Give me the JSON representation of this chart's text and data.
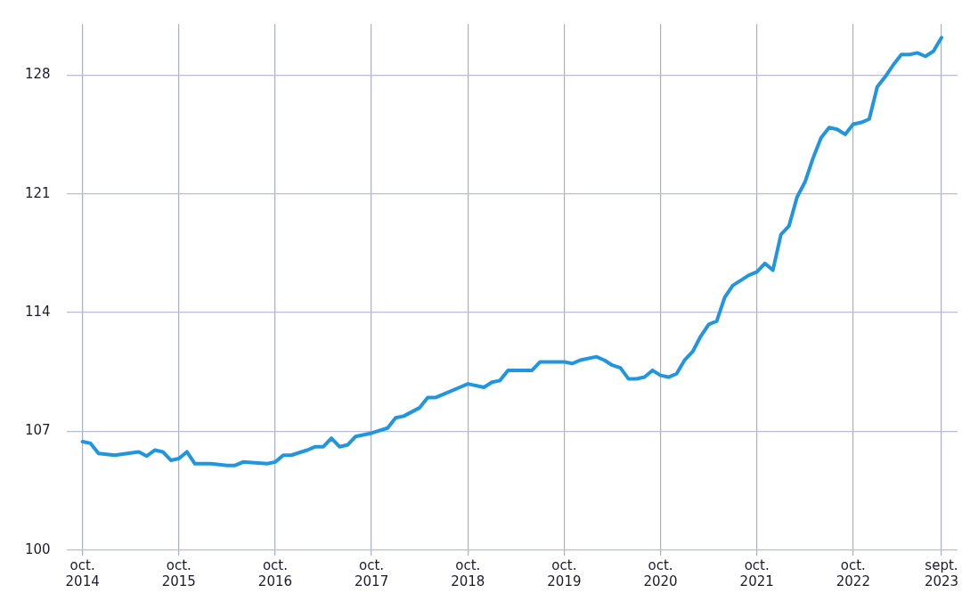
{
  "chart_data": {
    "type": "line",
    "x": [
      "2014-10",
      "2014-11",
      "2014-12",
      "2015-02",
      "2015-05",
      "2015-06",
      "2015-07",
      "2015-08",
      "2015-09",
      "2015-10",
      "2015-11",
      "2015-12",
      "2016-02",
      "2016-04",
      "2016-05",
      "2016-06",
      "2016-09",
      "2016-10",
      "2016-11",
      "2016-12",
      "2017-02",
      "2017-03",
      "2017-04",
      "2017-05",
      "2017-06",
      "2017-07",
      "2017-08",
      "2017-10",
      "2017-12",
      "2018-01",
      "2018-02",
      "2018-04",
      "2018-05",
      "2018-06",
      "2018-07",
      "2018-09",
      "2018-10",
      "2018-12",
      "2019-01",
      "2019-02",
      "2019-03",
      "2019-04",
      "2019-06",
      "2019-07",
      "2019-08",
      "2019-10",
      "2019-11",
      "2019-12",
      "2020-02",
      "2020-03",
      "2020-04",
      "2020-05",
      "2020-06",
      "2020-07",
      "2020-08",
      "2020-09",
      "2020-10",
      "2020-11",
      "2020-12",
      "2021-01",
      "2021-02",
      "2021-03",
      "2021-04",
      "2021-05",
      "2021-06",
      "2021-07",
      "2021-08",
      "2021-09",
      "2021-10",
      "2021-11",
      "2021-12",
      "2022-01",
      "2022-02",
      "2022-03",
      "2022-04",
      "2022-05",
      "2022-06",
      "2022-07",
      "2022-08",
      "2022-09",
      "2022-10",
      "2022-11",
      "2022-12",
      "2023-01",
      "2023-02",
      "2023-03",
      "2023-04",
      "2023-05",
      "2023-06",
      "2023-07",
      "2023-08",
      "2023-09"
    ],
    "series": [
      {
        "color": "#2196e0",
        "values": [
          106.4,
          106.3,
          105.7,
          105.6,
          105.8,
          105.55,
          105.9,
          105.8,
          105.3,
          105.4,
          105.8,
          105.1,
          105.1,
          105.0,
          105.0,
          105.2,
          105.1,
          105.2,
          105.6,
          105.6,
          105.9,
          106.1,
          106.1,
          106.6,
          106.1,
          106.2,
          106.7,
          106.9,
          107.2,
          107.8,
          107.9,
          108.4,
          109.0,
          109.0,
          109.2,
          109.6,
          109.8,
          109.6,
          109.9,
          110.0,
          110.6,
          110.6,
          110.6,
          111.1,
          111.1,
          111.1,
          111.0,
          111.2,
          111.4,
          111.2,
          110.9,
          110.75,
          110.1,
          110.1,
          110.2,
          110.6,
          110.3,
          110.2,
          110.4,
          111.2,
          111.7,
          112.6,
          113.3,
          113.5,
          114.9,
          115.6,
          115.9,
          116.2,
          116.4,
          116.9,
          116.5,
          118.6,
          119.1,
          120.8,
          121.7,
          123.1,
          124.3,
          124.9,
          124.8,
          124.5,
          125.1,
          125.2,
          125.4,
          127.3,
          127.9,
          128.6,
          129.2,
          129.2,
          129.3,
          129.1,
          129.4,
          130.2
        ]
      }
    ],
    "xlim": [
      "2014-08",
      "2023-11"
    ],
    "xticks": [
      {
        "value": "2014-10",
        "label": "oct. 2014"
      },
      {
        "value": "2015-10",
        "label": "oct. 2015"
      },
      {
        "value": "2016-10",
        "label": "oct. 2016"
      },
      {
        "value": "2017-10",
        "label": "oct. 2017"
      },
      {
        "value": "2018-10",
        "label": "oct. 2018"
      },
      {
        "value": "2019-10",
        "label": "oct. 2019"
      },
      {
        "value": "2020-10",
        "label": "oct. 2020"
      },
      {
        "value": "2021-10",
        "label": "oct. 2021"
      },
      {
        "value": "2022-10",
        "label": "oct. 2022"
      },
      {
        "value": "2023-09",
        "label": "sept. 2023"
      }
    ],
    "ylim": [
      100,
      131
    ],
    "yticks": [
      100,
      107,
      114,
      121,
      128
    ],
    "grid": true,
    "legend": false,
    "marker": "none",
    "line_style": "solid"
  }
}
